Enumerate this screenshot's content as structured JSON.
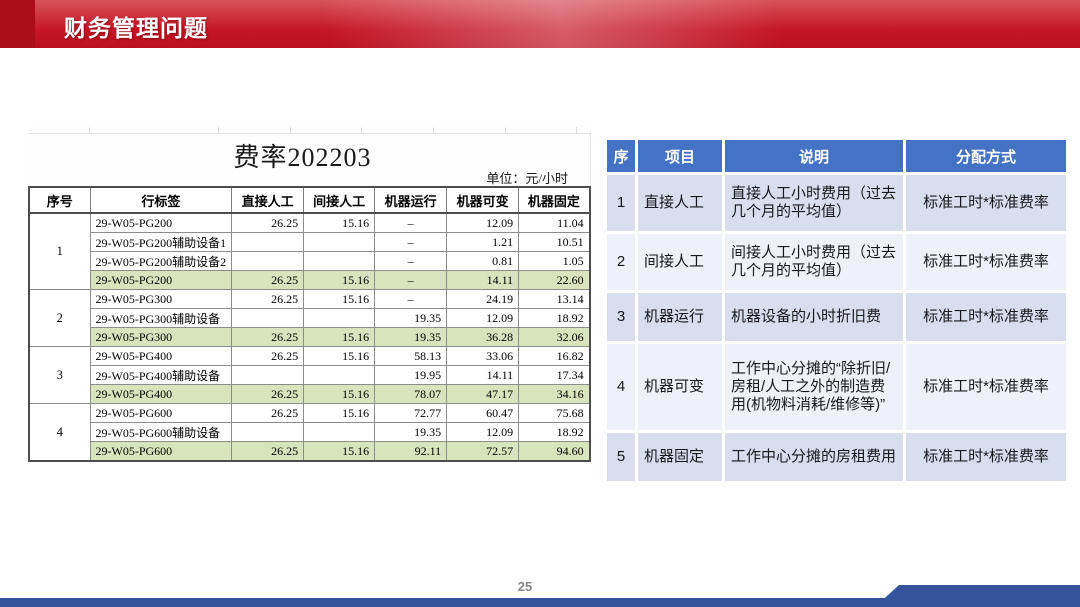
{
  "header": {
    "title": "财务管理问题"
  },
  "left_table": {
    "title": "费率202203",
    "unit": "单位：元/小时",
    "columns": [
      "序号",
      "行标签",
      "直接人工",
      "间接人工",
      "机器运行",
      "机器可变",
      "机器固定"
    ],
    "groups": [
      {
        "no": "1",
        "rows": [
          {
            "label": "29-W05-PG200",
            "values": [
              "26.25",
              "15.16",
              "–",
              "12.09",
              "11.04"
            ],
            "total": false
          },
          {
            "label": "29-W05-PG200辅助设备1",
            "values": [
              "",
              "",
              "–",
              "1.21",
              "10.51"
            ],
            "total": false
          },
          {
            "label": "29-W05-PG200辅助设备2",
            "values": [
              "",
              "",
              "–",
              "0.81",
              "1.05"
            ],
            "total": false
          },
          {
            "label": "29-W05-PG200",
            "values": [
              "26.25",
              "15.16",
              "–",
              "14.11",
              "22.60"
            ],
            "total": true
          }
        ]
      },
      {
        "no": "2",
        "rows": [
          {
            "label": "29-W05-PG300",
            "values": [
              "26.25",
              "15.16",
              "–",
              "24.19",
              "13.14"
            ],
            "total": false
          },
          {
            "label": "29-W05-PG300辅助设备",
            "values": [
              "",
              "",
              "19.35",
              "12.09",
              "18.92"
            ],
            "total": false
          },
          {
            "label": "29-W05-PG300",
            "values": [
              "26.25",
              "15.16",
              "19.35",
              "36.28",
              "32.06"
            ],
            "total": true
          }
        ]
      },
      {
        "no": "3",
        "rows": [
          {
            "label": "29-W05-PG400",
            "values": [
              "26.25",
              "15.16",
              "58.13",
              "33.06",
              "16.82"
            ],
            "total": false
          },
          {
            "label": "29-W05-PG400辅助设备",
            "values": [
              "",
              "",
              "19.95",
              "14.11",
              "17.34"
            ],
            "total": false
          },
          {
            "label": "29-W05-PG400",
            "values": [
              "26.25",
              "15.16",
              "78.07",
              "47.17",
              "34.16"
            ],
            "total": true
          }
        ]
      },
      {
        "no": "4",
        "rows": [
          {
            "label": "29-W05-PG600",
            "values": [
              "26.25",
              "15.16",
              "72.77",
              "60.47",
              "75.68"
            ],
            "total": false
          },
          {
            "label": "29-W05-PG600辅助设备",
            "values": [
              "",
              "",
              "19.35",
              "12.09",
              "18.92"
            ],
            "total": false
          },
          {
            "label": "29-W05-PG600",
            "values": [
              "26.25",
              "15.16",
              "92.11",
              "72.57",
              "94.60"
            ],
            "total": true
          }
        ]
      }
    ],
    "highlight_color": "#d7e4bc"
  },
  "right_table": {
    "headers": [
      "序",
      "项目",
      "说明",
      "分配方式"
    ],
    "rows": [
      {
        "no": "1",
        "item": "直接人工",
        "desc": "直接人工小时费用（过去几个月的平均值）",
        "method": "标准工时*标准费率"
      },
      {
        "no": "2",
        "item": "间接人工",
        "desc": "间接人工小时费用（过去几个月的平均值）",
        "method": "标准工时*标准费率"
      },
      {
        "no": "3",
        "item": "机器运行",
        "desc": "机器设备的小时折旧费",
        "method": "标准工时*标准费率"
      },
      {
        "no": "4",
        "item": "机器可变",
        "desc": "工作中心分摊的“除折旧/房租/人工之外的制造费用(机物料消耗/维修等)”",
        "method": "标准工时*标准费率"
      },
      {
        "no": "5",
        "item": "机器固定",
        "desc": "工作中心分摊的房租费用",
        "method": "标准工时*标准费率"
      }
    ],
    "header_color": "#4472c4",
    "band_color_a": "#d9deef",
    "band_color_b": "#eff1f8"
  },
  "footer": {
    "page_number": "25",
    "bar_color": "#35549b"
  }
}
